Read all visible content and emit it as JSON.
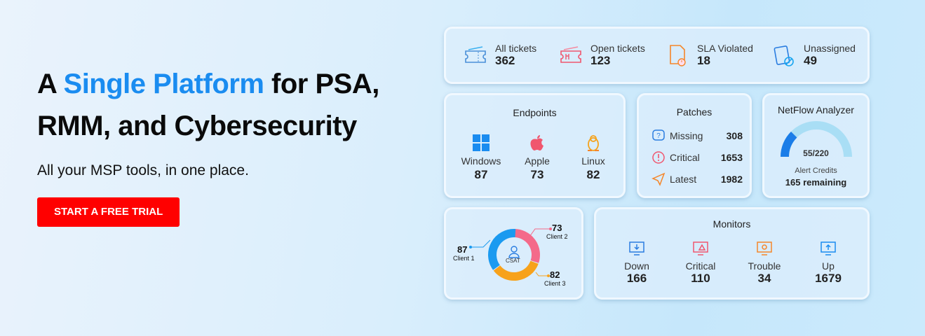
{
  "hero": {
    "title_pre": "A ",
    "title_highlight": "Single Platform",
    "title_post": " for PSA,",
    "title_line2": "RMM, and Cybersecurity",
    "subtitle": "All your MSP tools, in one place.",
    "cta": "START A FREE TRIAL"
  },
  "tickets": [
    {
      "label": "All tickets",
      "value": "362",
      "icon": "ticket-icon"
    },
    {
      "label": "Open tickets",
      "value": "123",
      "icon": "ticket-wrench-icon"
    },
    {
      "label": "SLA Violated",
      "value": "18",
      "icon": "document-alert-icon"
    },
    {
      "label": "Unassigned",
      "value": "49",
      "icon": "clipboard-blocked-icon"
    }
  ],
  "endpoints": {
    "title": "Endpoints",
    "items": [
      {
        "label": "Windows",
        "value": "87",
        "icon": "windows-icon"
      },
      {
        "label": "Apple",
        "value": "73",
        "icon": "apple-icon"
      },
      {
        "label": "Linux",
        "value": "82",
        "icon": "linux-icon"
      }
    ]
  },
  "patches": {
    "title": "Patches",
    "items": [
      {
        "label": "Missing",
        "value": "308",
        "icon": "question-icon"
      },
      {
        "label": "Critical",
        "value": "1653",
        "icon": "alert-icon"
      },
      {
        "label": "Latest",
        "value": "1982",
        "icon": "send-icon"
      }
    ]
  },
  "netflow": {
    "title": "NetFlow Analyzer",
    "used": 55,
    "total": 220,
    "gauge_text": "55/220",
    "credits_label": "Alert Credits",
    "remaining": "165 remaining"
  },
  "csat": {
    "center": "CSAT",
    "clients": [
      {
        "name": "Client 1",
        "value": "87",
        "color": "#1a9af0"
      },
      {
        "name": "Client 2",
        "value": "73",
        "color": "#f46a8a"
      },
      {
        "name": "Client 3",
        "value": "82",
        "color": "#f7a21b"
      }
    ]
  },
  "monitors": {
    "title": "Monitors",
    "items": [
      {
        "label": "Down",
        "value": "166",
        "color": "#2a7de0"
      },
      {
        "label": "Critical",
        "value": "110",
        "color": "#f0566e"
      },
      {
        "label": "Trouble",
        "value": "34",
        "color": "#f5862a"
      },
      {
        "label": "Up",
        "value": "1679",
        "color": "#1a8cf0"
      }
    ]
  }
}
